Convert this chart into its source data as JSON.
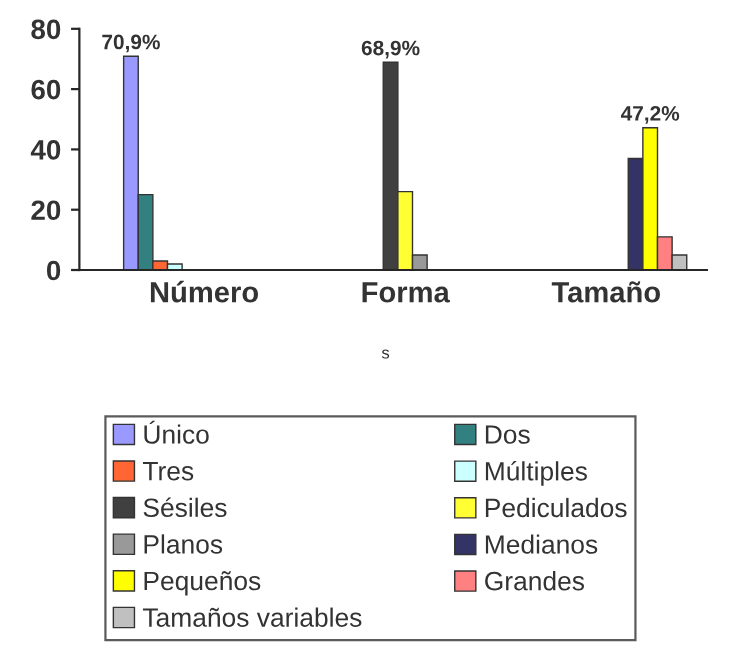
{
  "chart_data": {
    "type": "bar",
    "categories": [
      "Número",
      "Forma",
      "Tamaño"
    ],
    "series": [
      {
        "name": "Único",
        "color": "#9999ff",
        "values": [
          70.9,
          null,
          null
        ],
        "value_labels": [
          "70,9%",
          null,
          null
        ]
      },
      {
        "name": "Dos",
        "color": "#338080",
        "values": [
          25,
          null,
          null
        ]
      },
      {
        "name": "Tres",
        "color": "#ff6633",
        "values": [
          3,
          null,
          null
        ]
      },
      {
        "name": "Múltiples",
        "color": "#ccffff",
        "values": [
          2,
          null,
          null
        ]
      },
      {
        "name": "Sésiles",
        "color": "#404040",
        "values": [
          null,
          68.9,
          null
        ],
        "value_labels": [
          null,
          "68,9%",
          null
        ]
      },
      {
        "name": "Pediculados",
        "color": "#ffff33",
        "values": [
          null,
          26,
          null
        ]
      },
      {
        "name": "Planos",
        "color": "#999999",
        "values": [
          null,
          5,
          null
        ]
      },
      {
        "name": "Medianos",
        "color": "#333366",
        "values": [
          null,
          null,
          37
        ]
      },
      {
        "name": "Pequeños",
        "color": "#ffff00",
        "values": [
          null,
          null,
          47.2
        ],
        "value_labels": [
          null,
          null,
          "47,2%"
        ]
      },
      {
        "name": "Grandes",
        "color": "#ff8080",
        "values": [
          null,
          null,
          11
        ]
      },
      {
        "name": "Tamaños variables",
        "color": "#c0c0c0",
        "values": [
          null,
          null,
          5
        ]
      }
    ],
    "ylim": [
      0,
      80
    ],
    "yticks": [
      0,
      20,
      40,
      60,
      80
    ],
    "grid": false,
    "legend": "bottom",
    "annotations": [
      "s"
    ]
  }
}
